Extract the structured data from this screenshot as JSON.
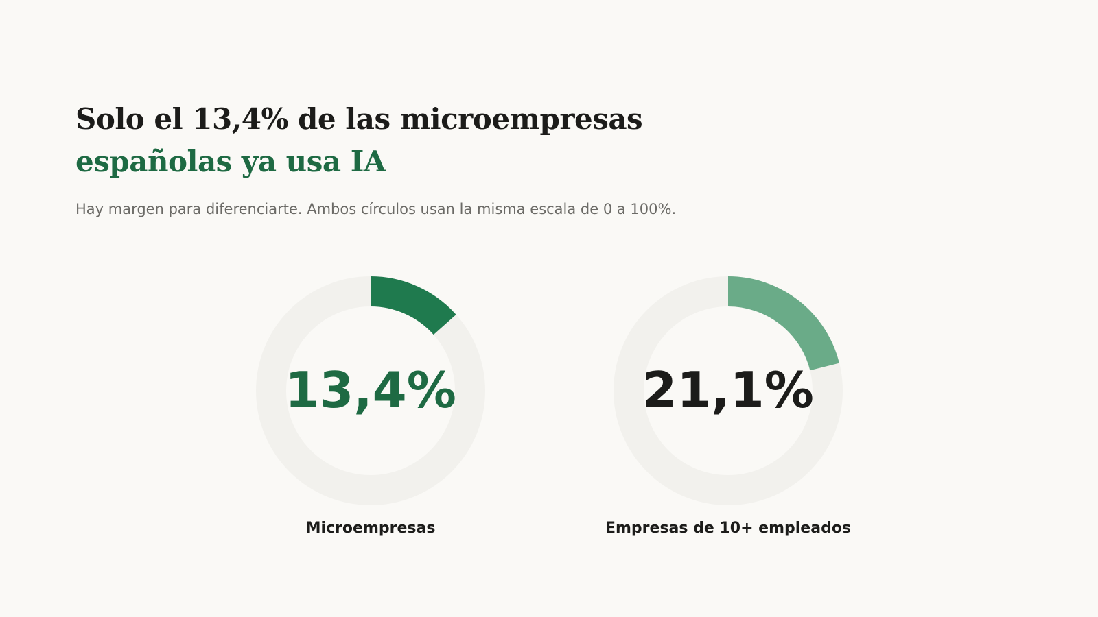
{
  "header": {
    "title_line1": "Solo el 13,4% de las microempresas",
    "title_line2": "españolas ya usa IA",
    "subtitle": "Hay margen para diferenciarte. Ambos círculos usan la misma escala de 0 a 100%."
  },
  "colors": {
    "background": "#faf9f6",
    "title": "#1c1c1a",
    "accent": "#1e6a43",
    "track": "#f2f1ed",
    "series_micro": "#1f7a4e",
    "series_large": "#6aab88",
    "value_micro_text": "#1e6a43",
    "value_large_text": "#1c1c1a"
  },
  "chart_data": {
    "type": "donut",
    "scale": [
      0,
      100
    ],
    "series": [
      {
        "name": "Microempresas",
        "value": 13.4,
        "value_label": "13,4%"
      },
      {
        "name": "Empresas de 10+ empleados",
        "value": 21.1,
        "value_label": "21,1%"
      }
    ]
  }
}
